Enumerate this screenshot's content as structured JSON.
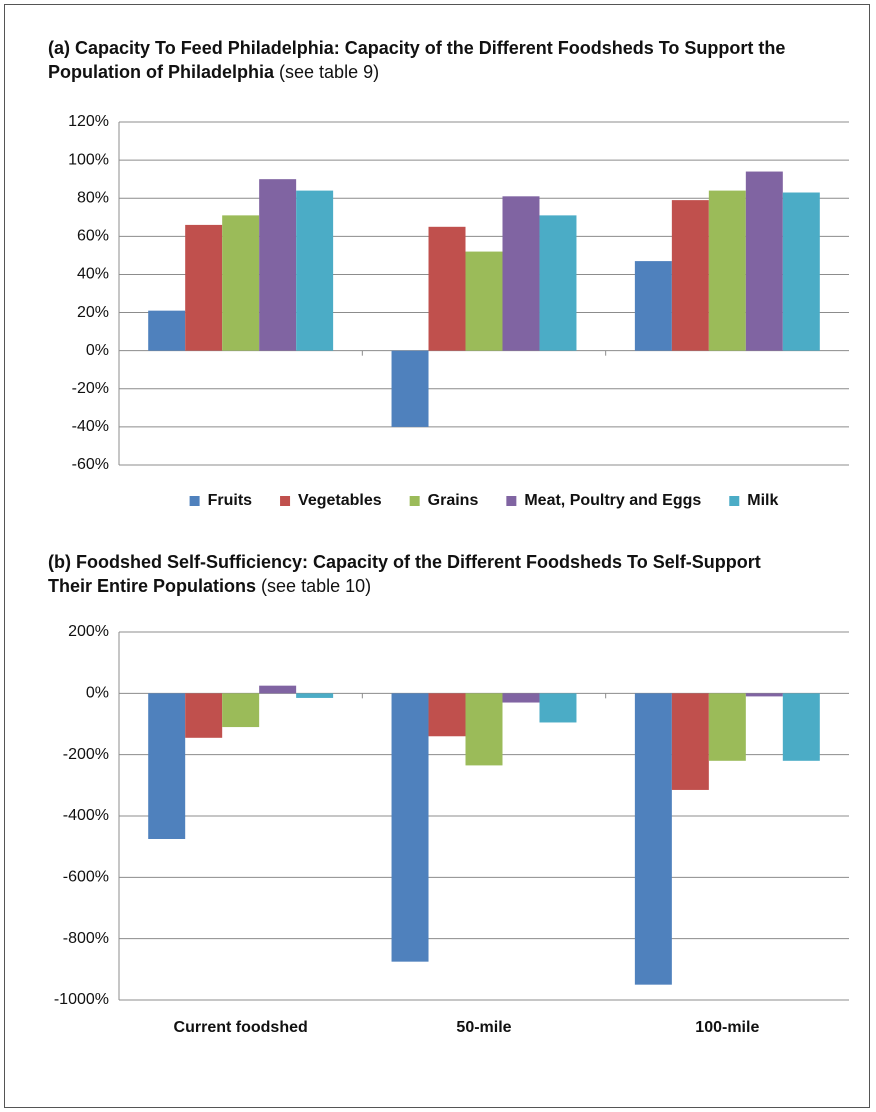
{
  "chart_data": [
    {
      "type": "bar",
      "title": "(a) Capacity To Feed Philadelphia: Capacity of the Different Foodsheds To Support the Population of Philadelphia",
      "title_note": "(see table 9)",
      "categories": [
        null,
        null,
        null
      ],
      "series": [
        {
          "name": "Fruits",
          "color": "#4f81bd",
          "values": [
            21,
            -40,
            47
          ]
        },
        {
          "name": "Vegetables",
          "color": "#c0504d",
          "values": [
            66,
            65,
            79
          ]
        },
        {
          "name": "Grains",
          "color": "#9bbb59",
          "values": [
            71,
            52,
            84
          ]
        },
        {
          "name": "Meat, Poultry and Eggs",
          "color": "#8064a2",
          "values": [
            90,
            81,
            94
          ]
        },
        {
          "name": "Milk",
          "color": "#4bacc6",
          "values": [
            84,
            71,
            83
          ]
        }
      ],
      "ylim": [
        -60,
        120
      ],
      "yticks": [
        {
          "value": -60,
          "label": "-60%"
        },
        {
          "value": -40,
          "label": "-40%"
        },
        {
          "value": -20,
          "label": "-20%"
        },
        {
          "value": 0,
          "label": "0%"
        },
        {
          "value": 20,
          "label": "20%"
        },
        {
          "value": 40,
          "label": "40%"
        },
        {
          "value": 60,
          "label": "60%"
        },
        {
          "value": 80,
          "label": "80%"
        },
        {
          "value": 100,
          "label": "100%"
        },
        {
          "value": 120,
          "label": "120%"
        }
      ],
      "grid": true,
      "legend": "bottom"
    },
    {
      "type": "bar",
      "title": "(b) Foodshed Self-Sufficiency: Capacity of the Different Foodsheds To Self-Support Their Entire Populations",
      "title_note": "(see table 10)",
      "categories": [
        "Current foodshed",
        "50-mile",
        "100-mile"
      ],
      "series": [
        {
          "color": "#4f81bd",
          "values": [
            -475,
            -875,
            -950
          ]
        },
        {
          "color": "#c0504d",
          "values": [
            -145,
            -140,
            -315
          ]
        },
        {
          "color": "#9bbb59",
          "values": [
            -110,
            -235,
            -220
          ]
        },
        {
          "color": "#8064a2",
          "values": [
            25,
            -30,
            -10
          ]
        },
        {
          "color": "#4bacc6",
          "values": [
            -15,
            -95,
            -220
          ]
        }
      ],
      "ylim": [
        -1000,
        200
      ],
      "yticks": [
        {
          "value": -1000,
          "label": "-1000%"
        },
        {
          "value": -800,
          "label": "-800%"
        },
        {
          "value": -600,
          "label": "-600%"
        },
        {
          "value": -400,
          "label": "-400%"
        },
        {
          "value": -200,
          "label": "-200%"
        },
        {
          "value": 0,
          "label": "0%"
        },
        {
          "value": 200,
          "label": "200%"
        }
      ],
      "grid": true
    }
  ]
}
